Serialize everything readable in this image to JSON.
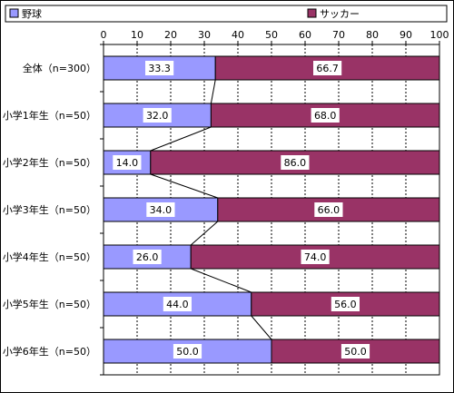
{
  "chart_data": {
    "type": "bar",
    "orientation": "horizontal",
    "stacked": true,
    "categories": [
      "全体（n=300）",
      "小学1年生（n=50）",
      "小学2年生（n=50）",
      "小学3年生（n=50）",
      "小学4年生（n=50）",
      "小学5年生（n=50）",
      "小学6年生（n=50）"
    ],
    "series": [
      {
        "name": "野球",
        "color": "#9999ff",
        "values": [
          33.3,
          32.0,
          14.0,
          34.0,
          26.0,
          44.0,
          50.0
        ]
      },
      {
        "name": "サッカー",
        "color": "#993366",
        "values": [
          66.7,
          68.0,
          86.0,
          66.0,
          74.0,
          56.0,
          50.0
        ]
      }
    ],
    "xlim": [
      0,
      100
    ],
    "xticks": [
      0,
      10,
      20,
      30,
      40,
      50,
      60,
      70,
      80,
      90,
      100
    ],
    "axis_position": "top",
    "grid": true,
    "series_lines": true,
    "legend": "top"
  }
}
